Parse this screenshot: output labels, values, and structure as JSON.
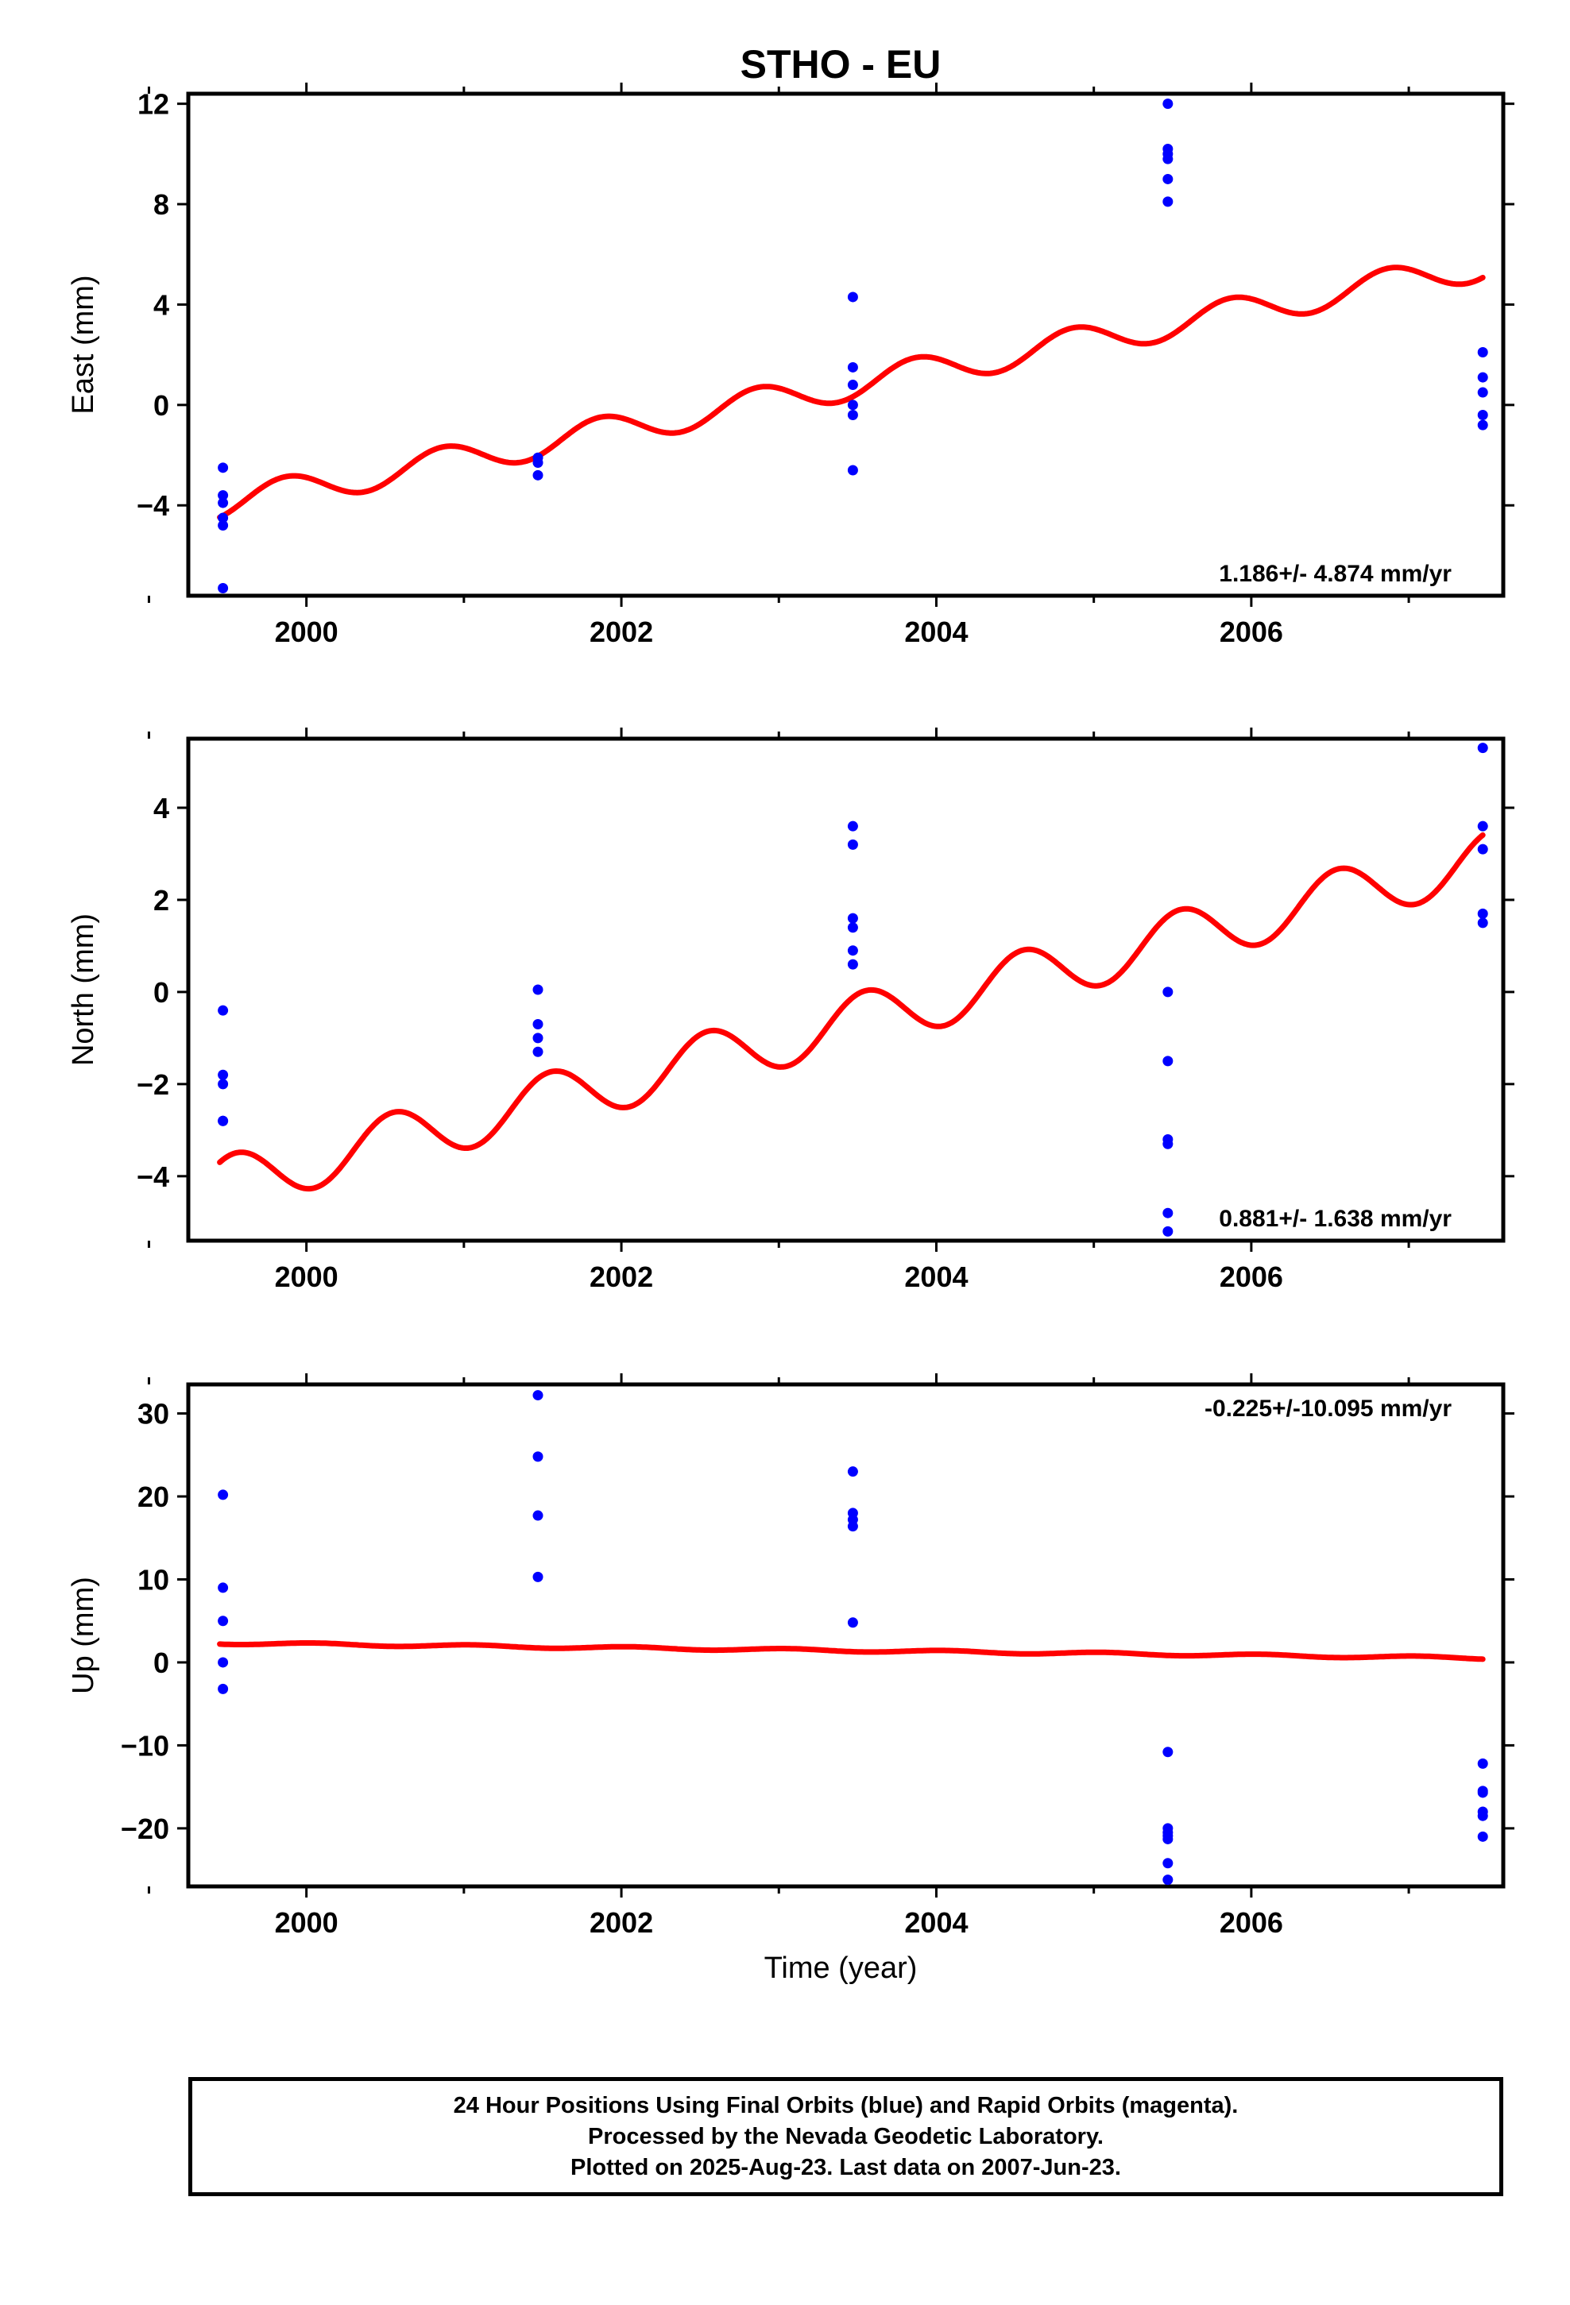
{
  "title": "STHO - EU",
  "xlabel": "Time (year)",
  "colors": {
    "points": "#0000ff",
    "model": "#ff0000",
    "frame": "#000000"
  },
  "chart_data": [
    {
      "type": "scatter",
      "ylabel": "East (mm)",
      "xlim": [
        1999.25,
        2007.6
      ],
      "ylim": [
        -7.6,
        12.4
      ],
      "yticks": [
        -4,
        0,
        4,
        8,
        12
      ],
      "ytick_labels": [
        "−4",
        "0",
        "4",
        "8",
        "12"
      ],
      "xticks": [
        2000,
        2002,
        2004,
        2006
      ],
      "xtick_labels": [
        "2000",
        "2002",
        "2004",
        "2006"
      ],
      "rate_label": "1.186+/- 4.874 mm/yr",
      "rate_position": "bottom-right",
      "series": [
        {
          "kind": "points",
          "x": [
            1999.47,
            1999.47,
            1999.47,
            1999.47,
            1999.47,
            1999.47,
            2001.47,
            2001.47,
            2001.47,
            2003.47,
            2003.47,
            2003.47,
            2003.47,
            2003.47,
            2003.47,
            2005.47,
            2005.47,
            2005.47,
            2005.47,
            2005.47,
            2005.47,
            2007.47,
            2007.47,
            2007.47,
            2007.47,
            2007.47
          ],
          "y": [
            -2.5,
            -3.6,
            -4.5,
            -4.8,
            -7.3,
            -3.9,
            -2.3,
            -2.8,
            -2.1,
            4.3,
            1.5,
            0.8,
            0,
            -0.4,
            -2.6,
            12,
            10.2,
            10,
            9.8,
            9,
            8.1,
            2.1,
            1.1,
            0.5,
            -0.4,
            -0.8
          ]
        },
        {
          "kind": "model",
          "x_start": 1999.45,
          "x_end": 2007.47,
          "intercept_2000": -3.3,
          "slope": 1.186,
          "amplitude": 0.6,
          "phase_year": 1999.62
        },
        {
          "kind": "segment",
          "x": [
            1999.45,
            2001.47,
            2003.47,
            2005.47,
            2007.47
          ]
        }
      ]
    },
    {
      "type": "scatter",
      "ylabel": "North (mm)",
      "xlim": [
        1999.25,
        2007.6
      ],
      "ylim": [
        -5.4,
        5.5
      ],
      "yticks": [
        -4,
        -2,
        0,
        2,
        4
      ],
      "ytick_labels": [
        "−4",
        "−2",
        "0",
        "2",
        "4"
      ],
      "xticks": [
        2000,
        2002,
        2004,
        2006
      ],
      "xtick_labels": [
        "2000",
        "2002",
        "2004",
        "2006"
      ],
      "rate_label": "0.881+/- 1.638 mm/yr",
      "rate_position": "bottom-right",
      "series": [
        {
          "kind": "points",
          "x": [
            1999.47,
            1999.47,
            1999.47,
            1999.47,
            1999.47,
            2001.47,
            2001.47,
            2001.47,
            2001.47,
            2003.47,
            2003.47,
            2003.47,
            2003.47,
            2003.47,
            2003.47,
            2005.47,
            2005.47,
            2005.47,
            2005.47,
            2005.47,
            2005.47,
            2007.47,
            2007.47,
            2007.47,
            2007.47,
            2007.47
          ],
          "y": [
            -0.4,
            -1.8,
            -2,
            -2.8,
            -2.8,
            0.05,
            -0.7,
            -1,
            -1.3,
            3.6,
            3.2,
            1.6,
            1.4,
            0.9,
            0.6,
            0,
            -1.5,
            -3.2,
            -3.3,
            -4.8,
            -5.2,
            5.3,
            3.6,
            3.1,
            1.7,
            1.5
          ]
        },
        {
          "kind": "model",
          "x_start": 1999.45,
          "x_end": 2007.47,
          "intercept_2000": -3.7,
          "slope": 0.881,
          "amplitude": 0.6,
          "phase_year": 1999.3
        }
      ]
    },
    {
      "type": "scatter",
      "ylabel": "Up (mm)",
      "xlim": [
        1999.25,
        2007.6
      ],
      "ylim": [
        -27,
        33.5
      ],
      "yticks": [
        -20,
        -10,
        0,
        10,
        20,
        30
      ],
      "ytick_labels": [
        "−20",
        "−10",
        "0",
        "10",
        "20",
        "30"
      ],
      "xticks": [
        2000,
        2002,
        2004,
        2006
      ],
      "xtick_labels": [
        "2000",
        "2002",
        "2004",
        "2006"
      ],
      "rate_label": "-0.225+/-10.095 mm/yr",
      "rate_position": "top-right",
      "series": [
        {
          "kind": "points",
          "x": [
            1999.47,
            1999.47,
            1999.47,
            1999.47,
            1999.47,
            2001.47,
            2001.47,
            2001.47,
            2001.47,
            2003.47,
            2003.47,
            2003.47,
            2003.47,
            2003.47,
            2005.47,
            2005.47,
            2005.47,
            2005.47,
            2005.47,
            2005.47,
            2005.47,
            2007.47,
            2007.47,
            2007.47,
            2007.47,
            2007.47,
            2007.47
          ],
          "y": [
            20.2,
            9,
            5,
            0,
            -3.2,
            32.2,
            24.8,
            17.7,
            10.3,
            23,
            18,
            17.2,
            16.4,
            4.8,
            -10.8,
            -20,
            -20.5,
            -21.3,
            -24.2,
            -26.2,
            -20.9,
            -12.2,
            -15.5,
            -15.7,
            -18,
            -18.5,
            -21
          ]
        },
        {
          "kind": "model",
          "x_start": 1999.45,
          "x_end": 2007.47,
          "intercept_2000": 2.2,
          "slope": -0.225,
          "amplitude": 0.15,
          "phase_year": 1999.8
        }
      ]
    }
  ],
  "footer": {
    "line1": "24 Hour Positions Using Final Orbits (blue) and Rapid Orbits (magenta).",
    "line2": "Processed by the Nevada Geodetic Laboratory.",
    "line3": "Plotted on 2025-Aug-23. Last data on 2007-Jun-23."
  }
}
